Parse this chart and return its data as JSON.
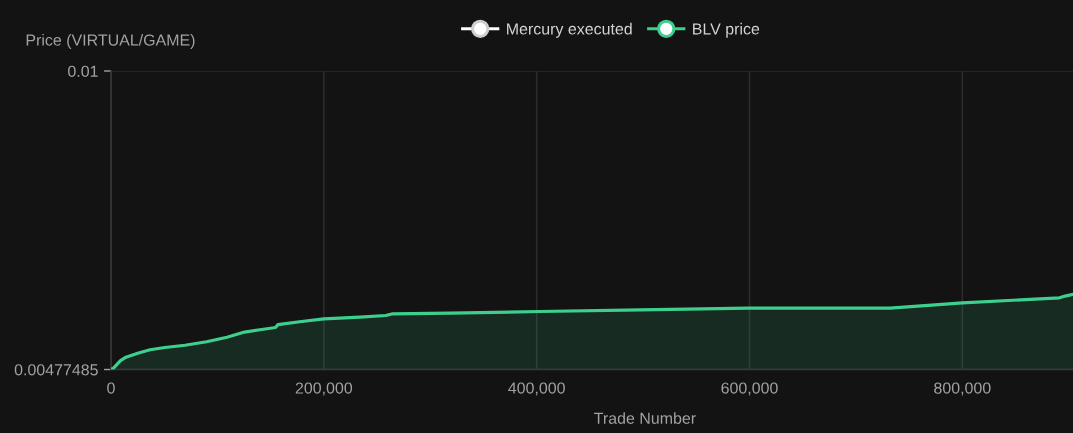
{
  "chart_data": {
    "type": "area",
    "xlabel": "Trade Number",
    "ylabel": "Price (VIRTUAL/GAME)",
    "xlim": [
      0,
      904000
    ],
    "ylim": [
      0.00477485,
      0.01
    ],
    "xticks": [
      0,
      {
        "value": 200000,
        "label": "200,000"
      },
      {
        "value": 400000,
        "label": "400,000"
      },
      {
        "value": 600000,
        "label": "600,000"
      },
      {
        "value": 800000,
        "label": "800,000"
      }
    ],
    "yticks": [
      0.00477485,
      0.01
    ],
    "grid": true,
    "legend": "top",
    "series": [
      {
        "name": "Mercury executed",
        "type": "scatter",
        "color": "#ffffff"
      },
      {
        "name": "BLV price",
        "color": "#3ecf8e",
        "x": [
          0,
          1900,
          8900,
          14100,
          25100,
          36700,
          50700,
          69500,
          89800,
          109000,
          125500,
          140000,
          154600,
          156900,
          177200,
          199900,
          234000,
          258200,
          264600,
          318600,
          403200,
          497100,
          598600,
          732100,
          800200,
          891300,
          896600,
          904000
        ],
        "values": [
          0.00478,
          0.00479,
          0.00493,
          0.00499,
          0.00506,
          0.00512,
          0.00516,
          0.0052,
          0.00526,
          0.00534,
          0.00543,
          0.00547,
          0.00551,
          0.00556,
          0.00561,
          0.00566,
          0.00569,
          0.00572,
          0.00575,
          0.00576,
          0.00579,
          0.00582,
          0.00585,
          0.00585,
          0.00594,
          0.00603,
          0.00606,
          0.00609
        ]
      }
    ]
  }
}
